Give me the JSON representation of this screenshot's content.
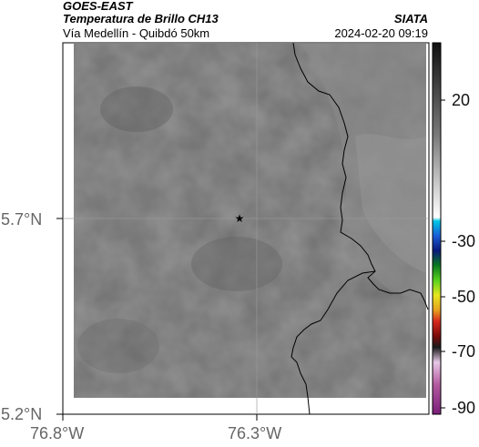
{
  "header": {
    "satellite": "GOES-EAST",
    "product": "Temperatura de Brillo CH13",
    "region": "Vía Medellín - Quibdó 50km",
    "org": "SIATA",
    "datetime": "2024-02-20 09:19"
  },
  "map": {
    "lat_ticks": [
      {
        "label": "5.7°N",
        "value": 5.7
      },
      {
        "label": "5.2°N",
        "value": 5.2
      }
    ],
    "lon_ticks": [
      {
        "label": "76.8°W",
        "value": -76.8
      },
      {
        "label": "76.3°W",
        "value": -76.3
      }
    ],
    "marker": {
      "name": "star",
      "lon": -76.33,
      "lat": 5.7
    },
    "colors": {
      "cloud_base": "#6e6e6e",
      "border": "#000000",
      "grid": "#9a9a9a"
    }
  },
  "colorbar": {
    "labels": [
      "20",
      "-30",
      "-50",
      "-70",
      "-90"
    ],
    "values": [
      20,
      -30,
      -50,
      -70,
      -90
    ]
  }
}
